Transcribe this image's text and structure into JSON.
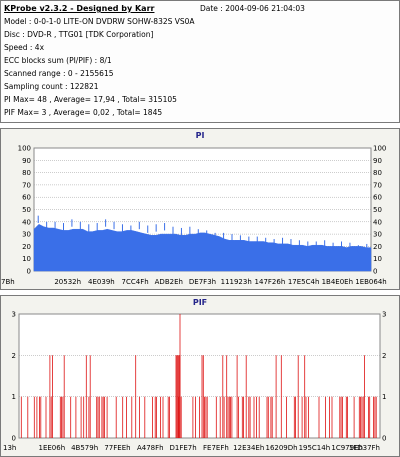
{
  "info": {
    "title": "KProbe v2.3.2 - Designed by Karr",
    "date": "Date : 2004-09-06 21:04:03",
    "model": "Model : 0-0-1-0 LITE-ON DVDRW SOHW-832S  VS0A",
    "disc": "Disc : DVD-R , TTG01 [TDK Corporation]",
    "speed": "Speed : 4x",
    "ecc": "ECC blocks sum (PI/PIF) : 8/1",
    "range": "Scanned range : 0 - 2155615",
    "sampling": "Sampling count : 122821",
    "pi_stats": "PI Max= 48 , Average= 17,94 , Total= 315105",
    "pif_stats": "PIF Max= 3 , Average= 0,02 , Total= 1845"
  },
  "chart_data": [
    {
      "type": "area",
      "title": "PI",
      "color": "#3a6fe8",
      "y_ticks": [
        "100",
        "90",
        "80",
        "70",
        "60",
        "50",
        "40",
        "30",
        "20",
        "10",
        "0"
      ],
      "ylim": [
        0,
        100
      ],
      "grid": true,
      "x_tick_labels": [
        "7Bh",
        "20532h",
        "4E039h",
        "7CC4Fh",
        "ADB2Eh",
        "DE7F3h",
        "111923h",
        "147F26h",
        "17E5C4h",
        "1B4E0Eh",
        "1EB064h"
      ],
      "values": [
        34,
        38,
        36,
        35,
        35,
        34,
        33,
        33,
        34,
        34,
        34,
        32,
        32,
        33,
        33,
        34,
        33,
        32,
        32,
        33,
        33,
        32,
        31,
        30,
        29,
        29,
        30,
        30,
        30,
        30,
        29,
        29,
        30,
        30,
        31,
        31,
        30,
        29,
        28,
        26,
        25,
        25,
        25,
        25,
        24,
        24,
        24,
        24,
        23,
        23,
        22,
        22,
        22,
        21,
        21,
        21,
        20,
        21,
        21,
        21,
        20,
        20,
        20,
        20,
        19,
        20,
        20,
        20,
        19,
        19
      ],
      "peaks": [
        45,
        40,
        40,
        39,
        42,
        40,
        38,
        39,
        42,
        40,
        38,
        37,
        40,
        37,
        38,
        39,
        36,
        35,
        36,
        34,
        33,
        31,
        31,
        30,
        29,
        28,
        28,
        27,
        26,
        27,
        26,
        25,
        24,
        24,
        25,
        23,
        24,
        23,
        21,
        22
      ]
    },
    {
      "type": "bar",
      "title": "PIF",
      "color": "#dd1111",
      "y_ticks": [
        "3",
        "2",
        "1",
        "0"
      ],
      "ylim": [
        0,
        3
      ],
      "grid": true,
      "x_tick_labels": [
        "13h",
        "1EE06h",
        "4B579h",
        "77FEEh",
        "A478Fh",
        "D1FE7h",
        "FE7EFh",
        "12E34Eh",
        "16209Dh",
        "195C14h",
        "1C979Eh",
        "1FD37Fh"
      ]
    }
  ]
}
